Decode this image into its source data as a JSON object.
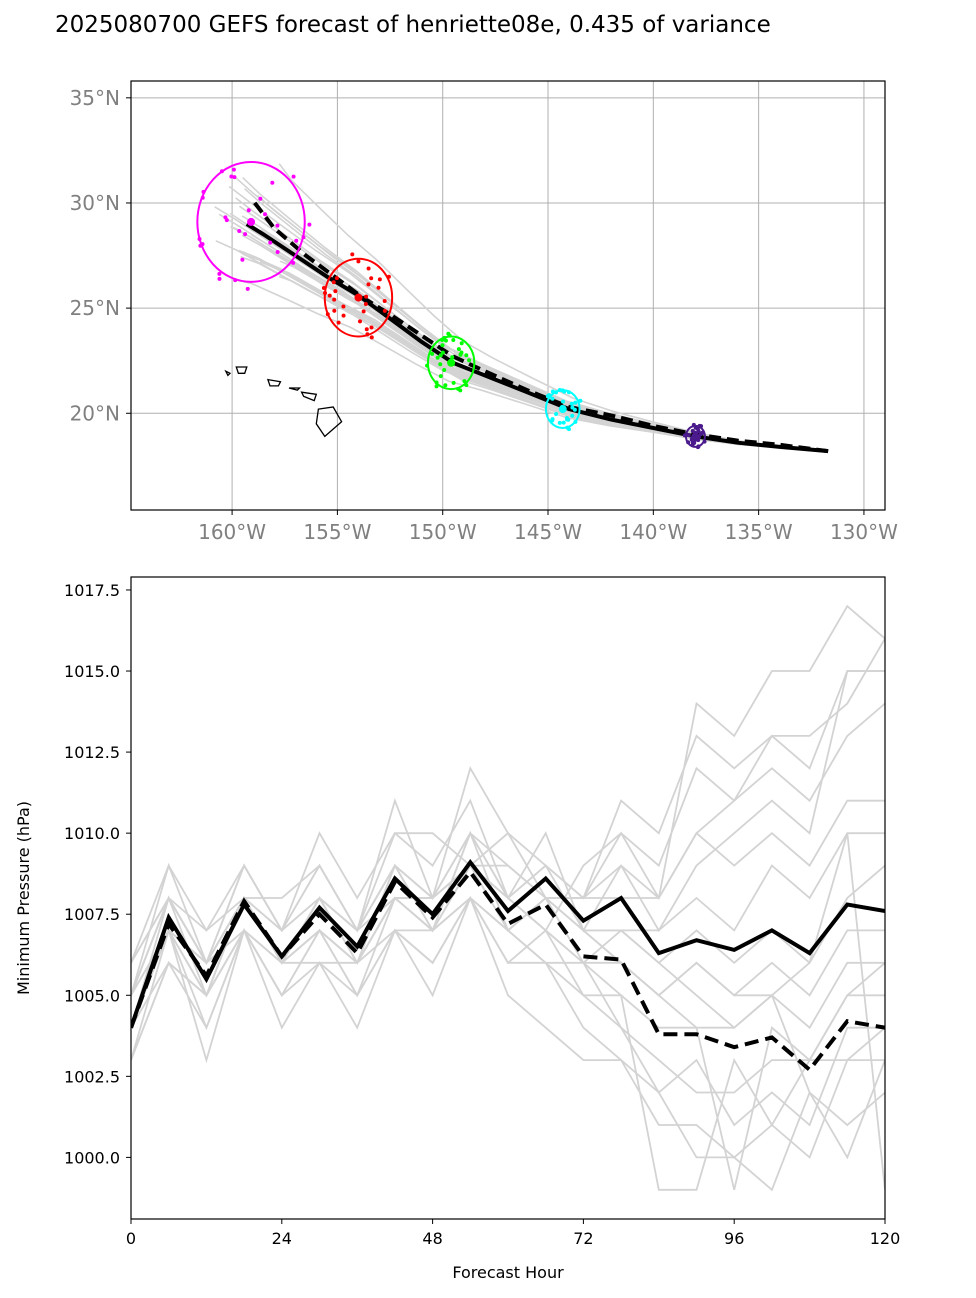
{
  "title": "2025080700 GEFS forecast of henriette08e, 0.435 of variance",
  "chart_data": [
    {
      "type": "map-track",
      "xlim": [
        -164.8,
        -129.0
      ],
      "ylim": [
        15.4,
        35.8
      ],
      "xticks": [
        -160,
        -155,
        -150,
        -145,
        -140,
        -135,
        -130
      ],
      "xtick_labels": [
        "160°W",
        "155°W",
        "150°W",
        "145°W",
        "140°W",
        "135°W",
        "130°W"
      ],
      "yticks": [
        20,
        25,
        30,
        35
      ],
      "ytick_labels": [
        "20°N",
        "25°N",
        "30°N",
        "35°N"
      ],
      "grid": true,
      "colors": {
        "members": "#d3d3d3",
        "mean": "#000000",
        "ellipses": [
          "#ff00ff",
          "#ff0000",
          "#00ff00",
          "#00ffff",
          "#4b1a8c"
        ]
      },
      "mean_track": [
        [
          -131.7,
          18.2
        ],
        [
          -134,
          18.4
        ],
        [
          -136,
          18.6
        ],
        [
          -138,
          18.9
        ],
        [
          -140,
          19.3
        ],
        [
          -142,
          19.7
        ],
        [
          -144,
          20.2
        ],
        [
          -146,
          21.0
        ],
        [
          -148,
          21.8
        ],
        [
          -149.5,
          22.4
        ],
        [
          -151,
          23.4
        ],
        [
          -152.5,
          24.5
        ],
        [
          -154,
          25.6
        ],
        [
          -155.5,
          26.5
        ],
        [
          -157,
          27.5
        ],
        [
          -158.5,
          28.5
        ],
        [
          -159.3,
          29.0
        ]
      ],
      "control_track": [
        [
          -131.7,
          18.2
        ],
        [
          -134,
          18.5
        ],
        [
          -136,
          18.7
        ],
        [
          -138,
          19.0
        ],
        [
          -140,
          19.4
        ],
        [
          -142,
          19.9
        ],
        [
          -144,
          20.3
        ],
        [
          -146,
          21.1
        ],
        [
          -148,
          22.0
        ],
        [
          -149.5,
          22.7
        ],
        [
          -151,
          23.7
        ],
        [
          -152.5,
          24.7
        ],
        [
          -153.8,
          25.5
        ],
        [
          -155,
          26.4
        ],
        [
          -156.5,
          27.5
        ],
        [
          -158,
          28.8
        ],
        [
          -159.0,
          30.1
        ]
      ],
      "ellipses": [
        {
          "lon": -159.1,
          "lat": 29.1,
          "rlon": 2.55,
          "rlat": 2.85
        },
        {
          "lon": -154.0,
          "lat": 25.5,
          "rlon": 1.6,
          "rlat": 1.85
        },
        {
          "lon": -149.6,
          "lat": 22.4,
          "rlon": 1.1,
          "rlat": 1.25
        },
        {
          "lon": -144.3,
          "lat": 20.2,
          "rlon": 0.8,
          "rlat": 0.9
        },
        {
          "lon": -138.0,
          "lat": 18.9,
          "rlon": 0.45,
          "rlat": 0.5
        }
      ]
    },
    {
      "type": "line",
      "xlabel": "Forecast Hour",
      "ylabel": "Minimum Pressure (hPa)",
      "xlim": [
        0,
        120
      ],
      "ylim": [
        998.1,
        1017.9
      ],
      "xticks": [
        0,
        24,
        48,
        72,
        96,
        120
      ],
      "yticks": [
        1000.0,
        1002.5,
        1005.0,
        1007.5,
        1010.0,
        1012.5,
        1015.0,
        1017.5
      ],
      "ytick_labels": [
        "1000.0",
        "1002.5",
        "1005.0",
        "1007.5",
        "1010.0",
        "1012.5",
        "1015.0",
        "1017.5"
      ],
      "x": [
        0,
        6,
        12,
        18,
        24,
        30,
        36,
        42,
        48,
        54,
        60,
        66,
        72,
        78,
        84,
        90,
        96,
        102,
        108,
        114,
        120
      ],
      "series": [
        {
          "role": "mean",
          "style": "solid",
          "values": [
            1004.0,
            1007.4,
            1005.5,
            1007.8,
            1006.2,
            1007.7,
            1006.5,
            1008.6,
            1007.5,
            1009.1,
            1007.6,
            1008.6,
            1007.3,
            1008.0,
            1006.3,
            1006.7,
            1006.4,
            1007.0,
            1006.3,
            1007.8,
            1007.6
          ]
        },
        {
          "role": "control",
          "style": "dashed",
          "values": [
            1004.0,
            1007.2,
            1005.6,
            1007.9,
            1006.2,
            1007.5,
            1006.3,
            1008.5,
            1007.4,
            1008.8,
            1007.2,
            1007.8,
            1006.2,
            1006.1,
            1003.8,
            1003.8,
            1003.4,
            1003.7,
            1002.7,
            1004.2,
            1004.0
          ]
        },
        {
          "role": "member",
          "values": [
            1005,
            1008,
            1006,
            1009,
            1007,
            1009,
            1007,
            1011,
            1008,
            1010,
            1008,
            1009,
            1008,
            1010,
            1008,
            1010,
            1011,
            1013,
            1012,
            1015,
            1015
          ]
        },
        {
          "role": "member",
          "values": [
            1004,
            1007,
            1005,
            1008,
            1006,
            1008,
            1006,
            1009,
            1008,
            1012,
            1010,
            1009,
            1008,
            1011,
            1010,
            1013,
            1012,
            1013,
            1013,
            1014,
            1016
          ]
        },
        {
          "role": "member",
          "values": [
            1003,
            1006,
            1004,
            1007,
            1005,
            1007,
            1005,
            1008,
            1007,
            1009,
            1008,
            1010,
            1007,
            1009,
            1008,
            1014,
            1013,
            1015,
            1015,
            1017,
            1016
          ]
        },
        {
          "role": "member",
          "values": [
            1004,
            1008,
            1005,
            1008,
            1006,
            1008,
            1006,
            1009,
            1007,
            1010,
            1009,
            1008,
            1008,
            1009,
            1007,
            1009,
            1010,
            1011,
            1010,
            1015,
            1015
          ]
        },
        {
          "role": "member",
          "values": [
            1005,
            1007,
            1006,
            1009,
            1007,
            1010,
            1008,
            1010,
            1009,
            1011,
            1008,
            1007,
            1009,
            1010,
            1009,
            1012,
            1011,
            1012,
            1011,
            1013,
            1014
          ]
        },
        {
          "role": "member",
          "values": [
            1006,
            1009,
            1007,
            1008,
            1008,
            1009,
            1007,
            1010,
            1010,
            1009,
            1007,
            1008,
            1008,
            1008,
            1008,
            1010,
            1009,
            1010,
            1009,
            1011,
            1011
          ]
        },
        {
          "role": "member",
          "values": [
            1004,
            1007,
            1006,
            1008,
            1007,
            1008,
            1007,
            1009,
            1008,
            1009,
            1010,
            1008,
            1007,
            1007,
            1007,
            1008,
            1007,
            1009,
            1008,
            1010,
            1010
          ]
        },
        {
          "role": "member",
          "values": [
            1005,
            1007,
            1004,
            1007,
            1006,
            1007,
            1006,
            1008,
            1007,
            1008,
            1006,
            1007,
            1006,
            1007,
            1006,
            1007,
            1006,
            1007,
            1006,
            1008,
            1009
          ]
        },
        {
          "role": "member",
          "values": [
            1003,
            1006,
            1005,
            1007,
            1005,
            1007,
            1005,
            1007,
            1006,
            1008,
            1007,
            1006,
            1006,
            1006,
            1005,
            1006,
            1005,
            1006,
            1005,
            1007,
            1007
          ]
        },
        {
          "role": "member",
          "values": [
            1005,
            1008,
            1006,
            1007,
            1006,
            1006,
            1006,
            1007,
            1007,
            1008,
            1006,
            1006,
            1005,
            1005,
            1004,
            1004,
            1004,
            1005,
            1004,
            1006,
            1006
          ]
        },
        {
          "role": "member",
          "values": [
            1004,
            1007,
            1005,
            1008,
            1006,
            1007,
            1006,
            1008,
            1007,
            1009,
            1008,
            1007,
            1005,
            1004,
            1003,
            1002,
            1002,
            1003,
            1003,
            1005,
            1005
          ]
        },
        {
          "role": "member",
          "values": [
            1003,
            1007,
            1003,
            1007,
            1004,
            1006,
            1004,
            1007,
            1005,
            1008,
            1005,
            1004,
            1003,
            1003,
            1001,
            1001,
            1000,
            1001,
            1000,
            1003,
            1003
          ]
        },
        {
          "role": "member",
          "values": [
            1006,
            1008,
            1007,
            1009,
            1007,
            1008,
            1007,
            1008,
            1008,
            1010,
            1008,
            1007,
            1006,
            1004,
            1002,
            1003,
            1001,
            1002,
            1001,
            1004,
            1004
          ]
        },
        {
          "role": "member",
          "values": [
            1005,
            1008,
            1006,
            1008,
            1006,
            1008,
            1007,
            1008,
            1008,
            1009,
            1009,
            1008,
            1006,
            1005,
            999,
            999,
            1003,
            1001,
            1003,
            1005,
            1006
          ]
        },
        {
          "role": "member",
          "values": [
            1004,
            1006,
            1005,
            1007,
            1005,
            1006,
            1005,
            1007,
            1006,
            1008,
            1007,
            1006,
            1004,
            1003,
            1002,
            1000,
            1000,
            999,
            1002,
            1001,
            1002
          ]
        },
        {
          "role": "member",
          "values": [
            1006,
            1008,
            1006,
            1008,
            1007,
            1009,
            1007,
            1009,
            1008,
            1009,
            1008,
            1009,
            1007,
            1006,
            1005,
            1004,
            999,
            1004,
            1003,
            1003,
            1004
          ]
        },
        {
          "role": "member",
          "values": [
            1004,
            1007,
            1005,
            1007,
            1006,
            1007,
            1006,
            1008,
            1007,
            1008,
            1007,
            1008,
            1007,
            1006,
            1005,
            1006,
            1005,
            1005,
            1002,
            1000,
            1003
          ]
        },
        {
          "role": "member",
          "values": [
            1005,
            1009,
            1006,
            1008,
            1006,
            1008,
            1007,
            1009,
            1007,
            1010,
            1007,
            1008,
            1007,
            1007,
            1006,
            1005,
            1004,
            1005,
            1006,
            1010,
            999
          ]
        }
      ]
    }
  ]
}
